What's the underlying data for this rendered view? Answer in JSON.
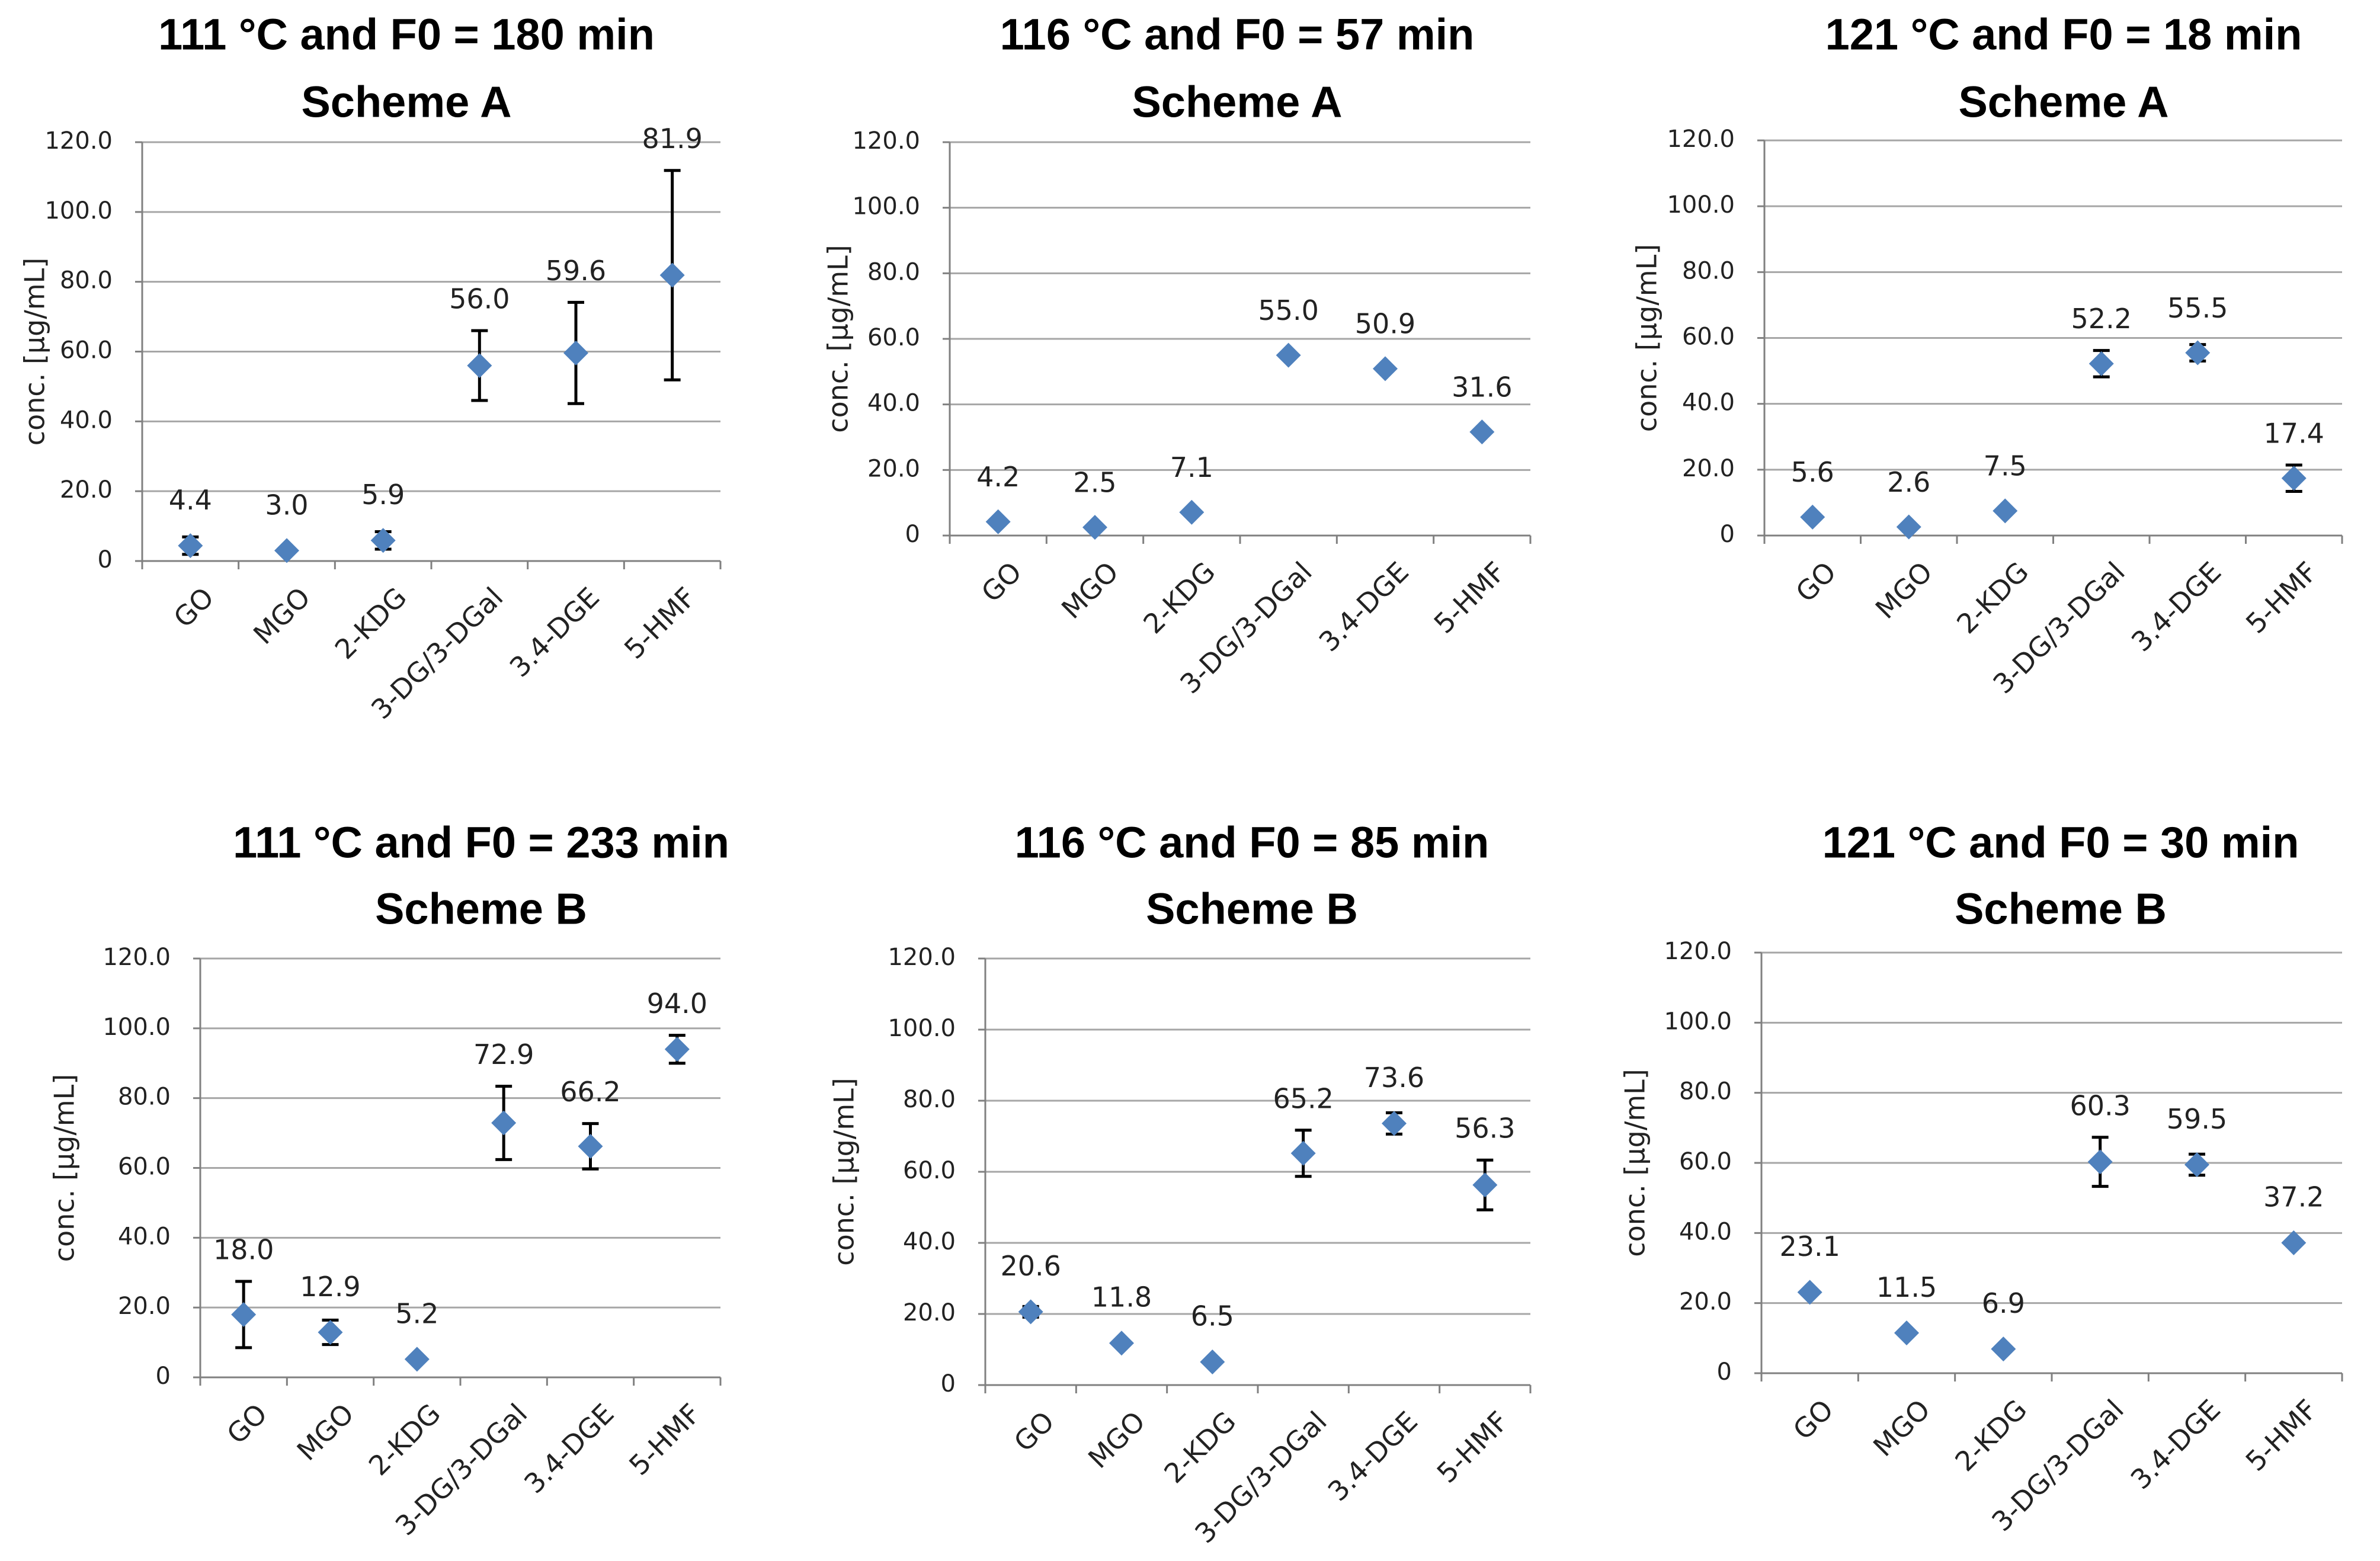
{
  "chart_data": [
    {
      "type": "scatter",
      "title": "111 °C and F0 = 180 min",
      "subtitle": "Scheme A",
      "ylabel": "conc. [µg/mL]",
      "xlabel": "",
      "ylim": [
        0,
        120
      ],
      "yticks": [
        "0",
        "20.0",
        "40.0",
        "60.0",
        "80.0",
        "100.0",
        "120.0"
      ],
      "categories": [
        "GO",
        "MGO",
        "2-KDG",
        "3-DG/3-DGal",
        "3.4-DGE",
        "5-HMF"
      ],
      "values": [
        4.4,
        3.0,
        5.9,
        56.0,
        59.6,
        81.9
      ],
      "labels": [
        "4.4",
        "3.0",
        "5.9",
        "56.0",
        "59.6",
        "81.9"
      ],
      "errors": [
        2.5,
        0,
        2.5,
        10,
        14.5,
        30
      ],
      "grid": true
    },
    {
      "type": "scatter",
      "title": "116 °C and F0 = 57 min",
      "subtitle": "Scheme A",
      "ylabel": "conc. [µg/mL]",
      "xlabel": "",
      "ylim": [
        0,
        120
      ],
      "yticks": [
        "0",
        "20.0",
        "40.0",
        "60.0",
        "80.0",
        "100.0",
        "120.0"
      ],
      "categories": [
        "GO",
        "MGO",
        "2-KDG",
        "3-DG/3-DGal",
        "3.4-DGE",
        "5-HMF"
      ],
      "values": [
        4.2,
        2.5,
        7.1,
        55.0,
        50.9,
        31.6
      ],
      "labels": [
        "4.2",
        "2.5",
        "7.1",
        "55.0",
        "50.9",
        "31.6"
      ],
      "errors": [
        0,
        0,
        0,
        0,
        0,
        0
      ],
      "grid": true
    },
    {
      "type": "scatter",
      "title": "121 °C and F0 = 18 min",
      "subtitle": "Scheme A",
      "ylabel": "conc. [µg/mL]",
      "xlabel": "",
      "ylim": [
        0,
        120
      ],
      "yticks": [
        "0",
        "20.0",
        "40.0",
        "60.0",
        "80.0",
        "100.0",
        "120.0"
      ],
      "categories": [
        "GO",
        "MGO",
        "2-KDG",
        "3-DG/3-DGal",
        "3.4-DGE",
        "5-HMF"
      ],
      "values": [
        5.6,
        2.6,
        7.5,
        52.2,
        55.5,
        17.4
      ],
      "labels": [
        "5.6",
        "2.6",
        "7.5",
        "52.2",
        "55.5",
        "17.4"
      ],
      "errors": [
        0,
        0,
        0,
        4,
        2.5,
        4
      ],
      "grid": true
    },
    {
      "type": "scatter",
      "title": "111 °C and F0 = 233 min",
      "subtitle": "Scheme B",
      "ylabel": "conc. [µg/mL]",
      "xlabel": "",
      "ylim": [
        0,
        120
      ],
      "yticks": [
        "0",
        "20.0",
        "40.0",
        "60.0",
        "80.0",
        "100.0",
        "120.0"
      ],
      "categories": [
        "GO",
        "MGO",
        "2-KDG",
        "3-DG/3-DGal",
        "3.4-DGE",
        "5-HMF"
      ],
      "values": [
        18.0,
        12.9,
        5.2,
        72.9,
        66.2,
        94.0
      ],
      "labels": [
        "18.0",
        "12.9",
        "5.2",
        "72.9",
        "66.2",
        "94.0"
      ],
      "errors": [
        9.5,
        3.5,
        0,
        10.5,
        6.5,
        4
      ],
      "grid": true
    },
    {
      "type": "scatter",
      "title": "116 °C and F0 = 85 min",
      "subtitle": "Scheme B",
      "ylabel": "conc. [µg/mL]",
      "xlabel": "",
      "ylim": [
        0,
        120
      ],
      "yticks": [
        "0",
        "20.0",
        "40.0",
        "60.0",
        "80.0",
        "100.0",
        "120.0"
      ],
      "categories": [
        "GO",
        "MGO",
        "2-KDG",
        "3-DG/3-DGal",
        "3.4-DGE",
        "5-HMF"
      ],
      "values": [
        20.6,
        11.8,
        6.5,
        65.2,
        73.6,
        56.3
      ],
      "labels": [
        "20.6",
        "11.8",
        "6.5",
        "65.2",
        "73.6",
        "56.3"
      ],
      "errors": [
        1.5,
        0,
        0,
        6.5,
        3,
        7
      ],
      "grid": true
    },
    {
      "type": "scatter",
      "title": "121 °C and F0 = 30 min",
      "subtitle": "Scheme B",
      "ylabel": "conc. [µg/mL]",
      "xlabel": "",
      "ylim": [
        0,
        120
      ],
      "yticks": [
        "0",
        "20.0",
        "40.0",
        "60.0",
        "80.0",
        "100.0",
        "120.0"
      ],
      "categories": [
        "GO",
        "MGO",
        "2-KDG",
        "3-DG/3-DGal",
        "3.4-DGE",
        "5-HMF"
      ],
      "values": [
        23.1,
        11.5,
        6.9,
        60.3,
        59.5,
        37.2
      ],
      "labels": [
        "23.1",
        "11.5",
        "6.9",
        "60.3",
        "59.5",
        "37.2"
      ],
      "errors": [
        0,
        0,
        0,
        7,
        3,
        0
      ],
      "grid": true
    }
  ],
  "colors": {
    "marker": "#4f81bd",
    "grid": "#a6a6a6",
    "axis": "#808080",
    "error_bar": "#000000"
  }
}
